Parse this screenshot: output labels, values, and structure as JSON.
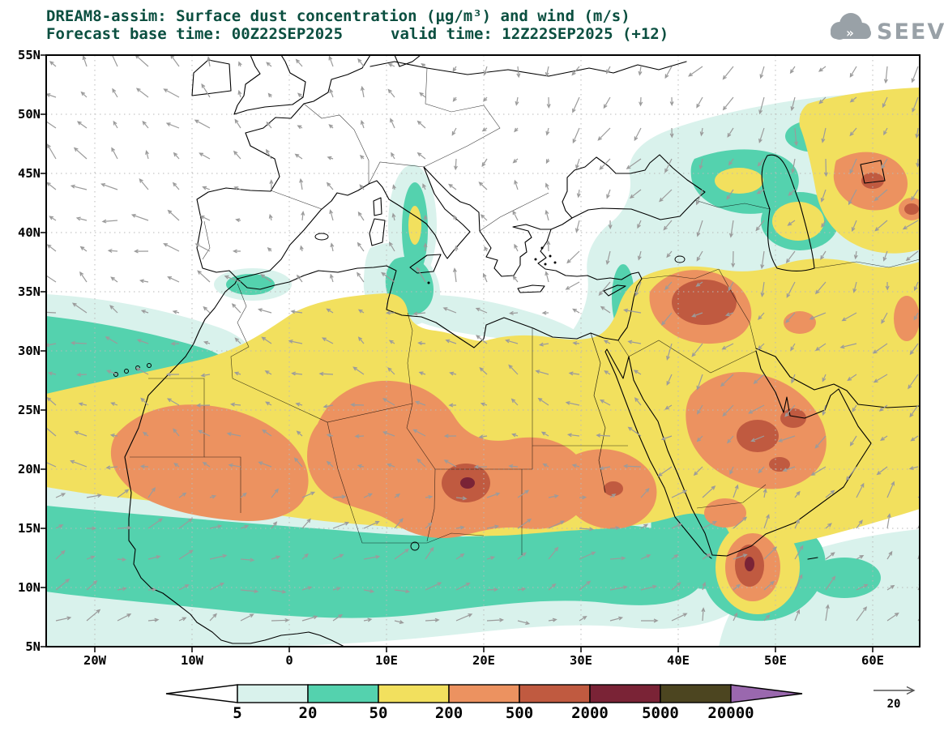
{
  "header": {
    "title_line1": "DREAM8-assim: Surface dust concentration (μg/m³) and wind (m/s)",
    "forecast_label": "Forecast base time: 00Z22SEP2025",
    "valid_label": "valid time: 12Z22SEP2025 (+12)",
    "logo_text": "SEEVCCC"
  },
  "axes": {
    "lat_labels": [
      "55N",
      "50N",
      "45N",
      "40N",
      "35N",
      "30N",
      "25N",
      "20N",
      "15N",
      "10N",
      "5N"
    ],
    "lon_labels": [
      "20W",
      "10W",
      "0",
      "10E",
      "20E",
      "30E",
      "40E",
      "50E",
      "60E"
    ]
  },
  "legend": {
    "values": [
      "5",
      "20",
      "50",
      "200",
      "500",
      "2000",
      "5000",
      "20000"
    ],
    "colors": [
      "#ffffff",
      "#d9f2ec",
      "#54d2ae",
      "#f2e05e",
      "#ec9260",
      "#c05a40",
      "#7a2336",
      "#4c4520",
      "#9a68ae"
    ],
    "wind_scale_label": "20"
  },
  "chart_data": {
    "type": "heatmap",
    "title": "DREAM8-assim: Surface dust concentration (μg/m³) and wind (m/s)",
    "model": "DREAM8-assim",
    "variable": "Surface dust concentration",
    "units": "μg/m³",
    "wind_variable": "wind",
    "wind_units": "m/s",
    "forecast_base_time": "00Z22SEP2025",
    "valid_time": "12Z22SEP2025",
    "lead_hours": "+12",
    "contour_levels": [
      5,
      20,
      50,
      200,
      500,
      2000,
      5000,
      20000
    ],
    "level_colors": [
      "#ffffff",
      "#d9f2ec",
      "#54d2ae",
      "#f2e05e",
      "#ec9260",
      "#c05a40",
      "#7a2336",
      "#4c4520",
      "#9a68ae"
    ],
    "wind_reference_ms": 20,
    "lat_ticks": [
      "55N",
      "50N",
      "45N",
      "40N",
      "35N",
      "30N",
      "25N",
      "20N",
      "15N",
      "10N",
      "5N"
    ],
    "lon_ticks": [
      "20W",
      "10W",
      "0",
      "10E",
      "20E",
      "30E",
      "40E",
      "50E",
      "60E"
    ],
    "legend_position": "bottom",
    "source_label": "SEEVCCC"
  }
}
